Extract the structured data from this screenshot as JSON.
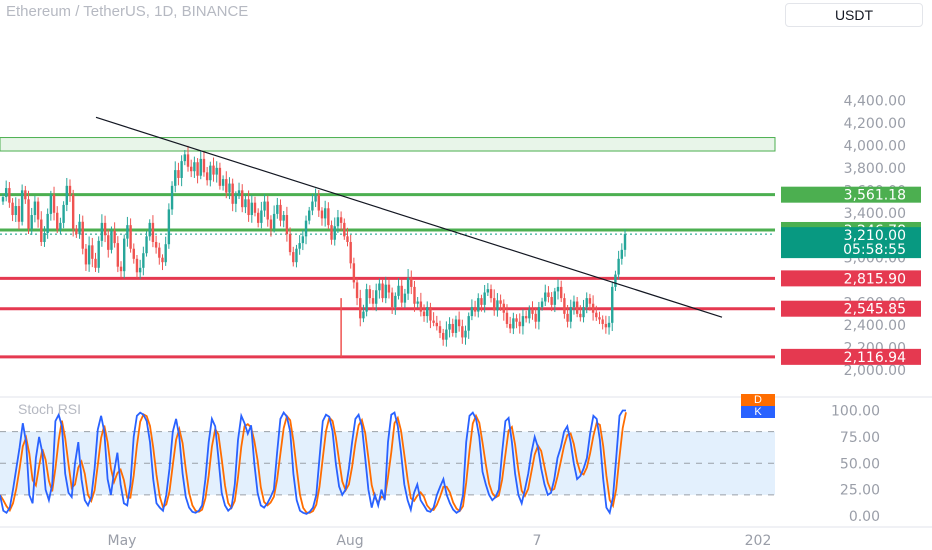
{
  "header": {
    "title": "Ethereum / TetherUS, 1D, BINANCE",
    "currency": "USDT"
  },
  "colors": {
    "green": "#4caf50",
    "red": "#e53950",
    "up": "#26a69a",
    "down": "#ef5350",
    "price_tag": "#089981",
    "k_line": "#2962ff",
    "d_line": "#ff6d00",
    "zone_fill": "#e8f5e9",
    "band_fill": "#e3f0fd"
  },
  "chart_data": {
    "type": "candlestick",
    "symbol": "Ethereum / TetherUS",
    "interval": "1D",
    "exchange": "BINANCE",
    "price_axis": {
      "ticks": [
        "4,400.00",
        "4,200.00",
        "4,000.00",
        "3,800.00",
        "3,600.00",
        "3,400.00",
        "3,200.00",
        "3,000.00",
        "2,800.00",
        "2,600.00",
        "2,400.00",
        "2,200.00",
        "2,000.00"
      ],
      "range": [
        1900,
        4500
      ]
    },
    "x_axis": {
      "ticks": [
        "May",
        "Aug",
        "7",
        "202"
      ]
    },
    "last_price": "3,210.00",
    "countdown": "05:58:55",
    "horizontal_levels": [
      {
        "value": 3561.18,
        "label": "3,561.18",
        "color": "green"
      },
      {
        "value": 3246.78,
        "label": "3,246.78",
        "color": "green"
      },
      {
        "value": 2815.9,
        "label": "2,815.90",
        "color": "red"
      },
      {
        "value": 2545.85,
        "label": "2,545.85",
        "color": "red"
      },
      {
        "value": 2116.94,
        "label": "2,116.94",
        "color": "red"
      }
    ],
    "zone": {
      "from": 3950,
      "to": 4070
    },
    "trendline": {
      "from": {
        "bar": 0,
        "price": 4250
      },
      "to": {
        "bar": 232,
        "price": 2470
      }
    },
    "closes": [
      3540,
      3620,
      3490,
      3380,
      3460,
      3320,
      3600,
      3520,
      3260,
      3380,
      3500,
      3340,
      3140,
      3220,
      3390,
      3560,
      3400,
      3250,
      3310,
      3470,
      3640,
      3560,
      3260,
      3210,
      3320,
      3080,
      2940,
      3110,
      2990,
      2910,
      3150,
      3310,
      3200,
      3070,
      3240,
      3130,
      2920,
      2880,
      3170,
      3290,
      3080,
      2990,
      2870,
      2910,
      3040,
      3190,
      3310,
      3140,
      3090,
      3000,
      2960,
      3120,
      3430,
      3640,
      3780,
      3710,
      3860,
      3920,
      3810,
      3770,
      3850,
      3730,
      3880,
      3760,
      3690,
      3820,
      3740,
      3800,
      3640,
      3700,
      3580,
      3660,
      3480,
      3560,
      3600,
      3450,
      3520,
      3380,
      3490,
      3400,
      3310,
      3420,
      3500,
      3340,
      3260,
      3390,
      3470,
      3330,
      3380,
      3210,
      3050,
      2960,
      3080,
      3130,
      3190,
      3330,
      3420,
      3500,
      3560,
      3420,
      3350,
      3440,
      3290,
      3160,
      3280,
      3360,
      3310,
      3190,
      3140,
      2950,
      2780,
      2640,
      2460,
      2520,
      2720,
      2640,
      2590,
      2710,
      2770,
      2640,
      2760,
      2690,
      2560,
      2660,
      2750,
      2600,
      2680,
      2820,
      2740,
      2590,
      2610,
      2520,
      2480,
      2560,
      2440,
      2420,
      2390,
      2330,
      2270,
      2360,
      2410,
      2330,
      2450,
      2390,
      2290,
      2350,
      2480,
      2560,
      2520,
      2640,
      2580,
      2690,
      2720,
      2640,
      2530,
      2620,
      2590,
      2510,
      2410,
      2370,
      2460,
      2430,
      2390,
      2480,
      2460,
      2540,
      2500,
      2430,
      2560,
      2610,
      2690,
      2650,
      2580,
      2700,
      2740,
      2640,
      2500,
      2430,
      2560,
      2610,
      2500,
      2470,
      2560,
      2640,
      2590,
      2510,
      2470,
      2450,
      2410,
      2380,
      2420,
      2740,
      2850,
      2990,
      3070,
      3210
    ],
    "stoch_rsi": {
      "title": "Stoch RSI",
      "legend": [
        "D",
        "K"
      ],
      "axis": [
        "100.00",
        "75.00",
        "50.00",
        "25.00",
        "0.00"
      ],
      "upper_band": 80,
      "lower_band": 20,
      "k": [
        20,
        5,
        3,
        8,
        25,
        45,
        65,
        88,
        70,
        20,
        12,
        55,
        75,
        60,
        25,
        15,
        30,
        90,
        96,
        85,
        40,
        22,
        18,
        50,
        70,
        35,
        15,
        10,
        18,
        45,
        82,
        95,
        80,
        35,
        20,
        42,
        60,
        30,
        12,
        10,
        30,
        75,
        95,
        98,
        96,
        90,
        70,
        35,
        12,
        8,
        5,
        20,
        45,
        80,
        92,
        75,
        40,
        18,
        8,
        4,
        3,
        5,
        10,
        35,
        70,
        92,
        85,
        55,
        22,
        10,
        5,
        8,
        30,
        72,
        95,
        88,
        78,
        86,
        50,
        22,
        10,
        8,
        12,
        18,
        25,
        60,
        92,
        98,
        94,
        80,
        40,
        15,
        5,
        3,
        2,
        4,
        8,
        20,
        55,
        90,
        96,
        94,
        80,
        50,
        28,
        20,
        25,
        45,
        70,
        92,
        96,
        85,
        55,
        25,
        8,
        20,
        10,
        25,
        15,
        70,
        96,
        98,
        85,
        60,
        30,
        15,
        6,
        22,
        30,
        15,
        10,
        5,
        4,
        8,
        20,
        28,
        35,
        20,
        12,
        6,
        3,
        5,
        20,
        70,
        95,
        98,
        92,
        75,
        42,
        30,
        20,
        15,
        18,
        25,
        60,
        90,
        93,
        70,
        40,
        20,
        12,
        25,
        40,
        60,
        75,
        65,
        45,
        30,
        20,
        22,
        35,
        55,
        65,
        80,
        85,
        70,
        50,
        35,
        38,
        45,
        55,
        78,
        95,
        92,
        72,
        35,
        8,
        3,
        18,
        55,
        95,
        100,
        100
      ]
    }
  }
}
